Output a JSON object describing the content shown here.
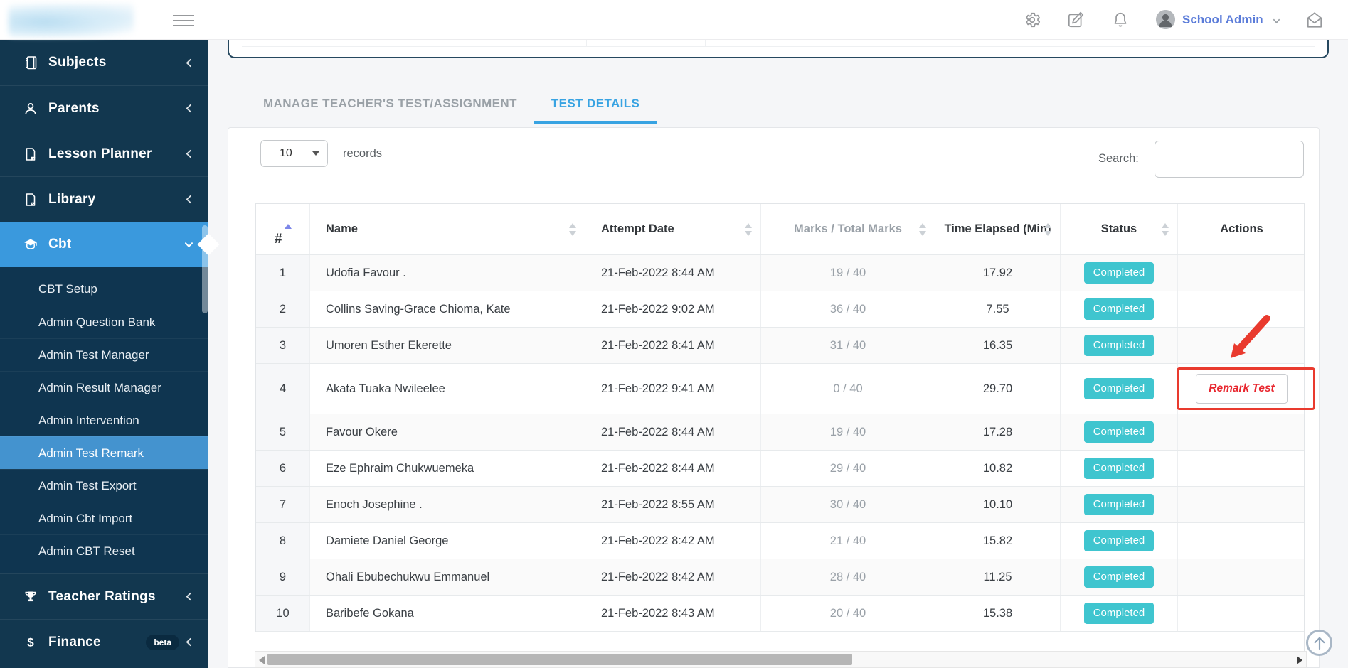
{
  "topbar": {
    "user_label": "School Admin"
  },
  "sidebar": {
    "items": [
      {
        "label": "Subjects",
        "icon": "book"
      },
      {
        "label": "Parents",
        "icon": "person"
      },
      {
        "label": "Lesson Planner",
        "icon": "file"
      },
      {
        "label": "Library",
        "icon": "file"
      },
      {
        "label": "Cbt",
        "icon": "graduation-cap",
        "active": true,
        "expanded": true,
        "children": [
          "CBT Setup",
          "Admin Question Bank",
          "Admin Test Manager",
          "Admin Result Manager",
          "Admin Intervention",
          "Admin Test Remark",
          "Admin Test Export",
          "Admin Cbt Import",
          "Admin CBT Reset"
        ],
        "active_child": "Admin Test Remark"
      },
      {
        "label": "Teacher Ratings",
        "icon": "trophy"
      },
      {
        "label": "Finance",
        "icon": "dollar",
        "badge": "beta"
      }
    ]
  },
  "tabs": [
    {
      "label": "MANAGE TEACHER'S TEST/ASSIGNMENT",
      "active": false
    },
    {
      "label": "TEST DETAILS",
      "active": true
    }
  ],
  "controls": {
    "records_value": "10",
    "records_label": "records",
    "search_label": "Search:",
    "search_value": ""
  },
  "table": {
    "headers": [
      {
        "label": "#",
        "sort": "asc"
      },
      {
        "label": "Name",
        "sort": "both"
      },
      {
        "label": "Attempt Date",
        "sort": "both"
      },
      {
        "label": "Marks / Total Marks",
        "sort": "both"
      },
      {
        "label": "Time Elapsed (Min)",
        "sort": "both"
      },
      {
        "label": "Status",
        "sort": "both"
      },
      {
        "label": "Actions",
        "sort": "none"
      }
    ],
    "rows": [
      {
        "num": "1",
        "name": "Udofia Favour .",
        "date": "21-Feb-2022 8:44 AM",
        "marks": "19 / 40",
        "time": "17.92",
        "status": "Completed",
        "action": ""
      },
      {
        "num": "2",
        "name": "Collins Saving-Grace Chioma, Kate",
        "date": "21-Feb-2022 9:02 AM",
        "marks": "36 / 40",
        "time": "7.55",
        "status": "Completed",
        "action": ""
      },
      {
        "num": "3",
        "name": "Umoren Esther Ekerette",
        "date": "21-Feb-2022 8:41 AM",
        "marks": "31 / 40",
        "time": "16.35",
        "status": "Completed",
        "action": ""
      },
      {
        "num": "4",
        "name": "Akata Tuaka Nwileelee",
        "date": "21-Feb-2022 9:41 AM",
        "marks": "0 / 40",
        "time": "29.70",
        "status": "Completed",
        "action": "Remark Test",
        "highlighted": true
      },
      {
        "num": "5",
        "name": "Favour Okere",
        "date": "21-Feb-2022 8:44 AM",
        "marks": "19 / 40",
        "time": "17.28",
        "status": "Completed",
        "action": ""
      },
      {
        "num": "6",
        "name": "Eze Ephraim Chukwuemeka",
        "date": "21-Feb-2022 8:44 AM",
        "marks": "29 / 40",
        "time": "10.82",
        "status": "Completed",
        "action": ""
      },
      {
        "num": "7",
        "name": "Enoch Josephine .",
        "date": "21-Feb-2022 8:55 AM",
        "marks": "30 / 40",
        "time": "10.10",
        "status": "Completed",
        "action": ""
      },
      {
        "num": "8",
        "name": "Damiete Daniel George",
        "date": "21-Feb-2022 8:42 AM",
        "marks": "21 / 40",
        "time": "15.82",
        "status": "Completed",
        "action": ""
      },
      {
        "num": "9",
        "name": "Ohali Ebubechukwu Emmanuel",
        "date": "21-Feb-2022 8:42 AM",
        "marks": "28 / 40",
        "time": "11.25",
        "status": "Completed",
        "action": ""
      },
      {
        "num": "10",
        "name": "Baribefe Gokana",
        "date": "21-Feb-2022 8:43 AM",
        "marks": "20 / 40",
        "time": "15.38",
        "status": "Completed",
        "action": ""
      }
    ]
  },
  "colors": {
    "sidebar_bg": "#12374f",
    "sidebar_submenu_bg": "#0f3550",
    "sidebar_active_blue": "#3a99dd",
    "subitem_active_blue": "#4493cf",
    "tab_active_blue": "#38a3e2",
    "status_badge_teal": "#3fc5cf",
    "action_red": "#e8262e",
    "annotation_red": "#e93a2e",
    "username_blue": "#5b7cd9"
  }
}
